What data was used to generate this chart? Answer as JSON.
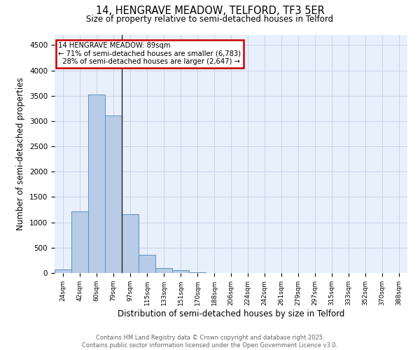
{
  "title_line1": "14, HENGRAVE MEADOW, TELFORD, TF3 5ER",
  "title_line2": "Size of property relative to semi-detached houses in Telford",
  "xlabel": "Distribution of semi-detached houses by size in Telford",
  "ylabel": "Number of semi-detached properties",
  "categories": [
    "24sqm",
    "42sqm",
    "60sqm",
    "79sqm",
    "97sqm",
    "115sqm",
    "133sqm",
    "151sqm",
    "170sqm",
    "188sqm",
    "206sqm",
    "224sqm",
    "242sqm",
    "261sqm",
    "279sqm",
    "297sqm",
    "315sqm",
    "333sqm",
    "352sqm",
    "370sqm",
    "388sqm"
  ],
  "values": [
    75,
    1220,
    3520,
    3110,
    1160,
    355,
    100,
    55,
    15,
    5,
    2,
    0,
    0,
    0,
    0,
    0,
    0,
    0,
    0,
    0,
    0
  ],
  "bar_color": "#b8cce8",
  "bar_edge_color": "#6090c0",
  "vline_color": "#222222",
  "annotation_box_color": "#cc0000",
  "property_label": "14 HENGRAVE MEADOW: 89sqm",
  "pct_smaller": 71,
  "pct_larger": 28,
  "count_smaller": 6783,
  "count_larger": 2647,
  "ylim": [
    0,
    4700
  ],
  "yticks": [
    0,
    500,
    1000,
    1500,
    2000,
    2500,
    3000,
    3500,
    4000,
    4500
  ],
  "grid_color": "#c8d4e8",
  "bg_color": "#e8f0fc",
  "footer_line1": "Contains HM Land Registry data © Crown copyright and database right 2025.",
  "footer_line2": "Contains public sector information licensed under the Open Government Licence v3.0."
}
